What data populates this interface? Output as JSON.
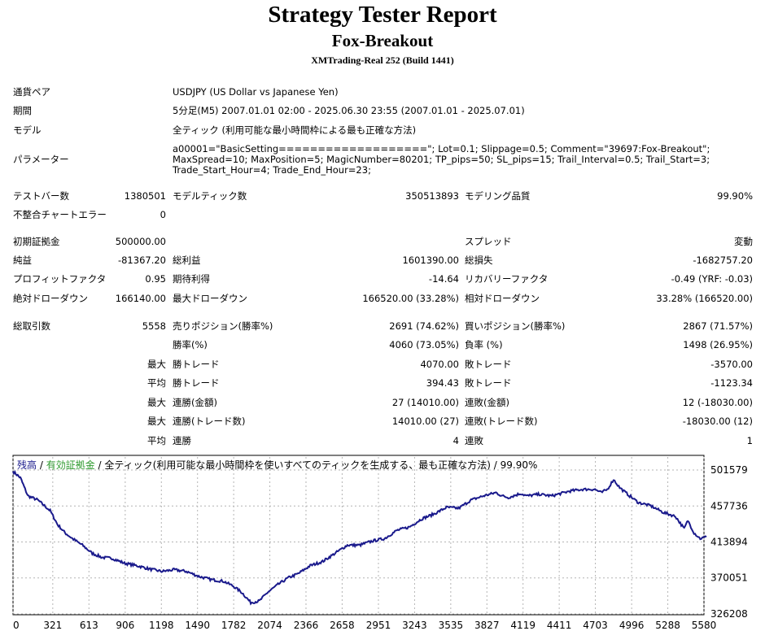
{
  "report": {
    "title": "Strategy Tester Report",
    "ea_name": "Fox-Breakout",
    "server": "XMTrading-Real 252 (Build 1441)"
  },
  "info": {
    "pair_label": "通貨ペア",
    "pair_value": "USDJPY (US Dollar vs Japanese Yen)",
    "period_label": "期間",
    "period_value": "5分足(M5) 2007.01.01 02:00 - 2025.06.30 23:55 (2007.01.01 - 2025.07.01)",
    "model_label": "モデル",
    "model_value": "全ティック (利用可能な最小時間枠による最も正確な方法)",
    "params_label": "パラメーター",
    "params_value": "a00001=\"BasicSetting===================\"; Lot=0.1; Slippage=0.5; Comment=\"39697:Fox-Breakout\"; MaxSpread=10; MaxPosition=5; MagicNumber=80201; TP_pips=50; SL_pips=15; Trail_Interval=0.5; Trail_Start=3; Trade_Start_Hour=4; Trade_End_Hour=23;"
  },
  "test": {
    "bars_label": "テストバー数",
    "bars_value": "1380501",
    "ticks_label": "モデルティック数",
    "ticks_value": "350513893",
    "quality_label": "モデリング品質",
    "quality_value": "99.90%",
    "mismatch_label": "不整合チャートエラー",
    "mismatch_value": "0"
  },
  "results": {
    "deposit_label": "初期証拠金",
    "deposit_value": "500000.00",
    "spread_label": "スプレッド",
    "spread_value": "変動",
    "net_label": "純益",
    "net_value": "-81367.20",
    "gross_profit_label": "総利益",
    "gross_profit_value": "1601390.00",
    "gross_loss_label": "総損失",
    "gross_loss_value": "-1682757.20",
    "pf_label": "プロフィットファクタ",
    "pf_value": "0.95",
    "payoff_label": "期待利得",
    "payoff_value": "-14.64",
    "recovery_label": "リカバリーファクタ",
    "recovery_value": "-0.49 (YRF: -0.03)",
    "abs_dd_label": "絶対ドローダウン",
    "abs_dd_value": "166140.00",
    "max_dd_label": "最大ドローダウン",
    "max_dd_value": "166520.00 (33.28%)",
    "rel_dd_label": "相対ドローダウン",
    "rel_dd_value": "33.28% (166520.00)"
  },
  "trades": {
    "total_label": "総取引数",
    "total_value": "5558",
    "short_label": "売りポジション(勝率%)",
    "short_value": "2691 (74.62%)",
    "long_label": "買いポジション(勝率%)",
    "long_value": "2867 (71.57%)",
    "win_label": "勝率(%)",
    "win_value": "4060 (73.05%)",
    "loss_label": "負率 (%)",
    "loss_value": "1498 (26.95%)",
    "max": "最大",
    "avg": "平均",
    "win_trade_label": "勝トレード",
    "loss_trade_label": "敗トレード",
    "max_win_trade": "4070.00",
    "max_loss_trade": "-3570.00",
    "avg_win_trade": "394.43",
    "avg_loss_trade": "-1123.34",
    "consec_win_amount_label": "連勝(金額)",
    "consec_win_amount_value": "27 (14010.00)",
    "consec_loss_amount_label": "連敗(金額)",
    "consec_loss_amount_value": "12 (-18030.00)",
    "consec_win_count_label": "連勝(トレード数)",
    "consec_win_count_value": "14010.00 (27)",
    "consec_loss_count_label": "連敗(トレード数)",
    "consec_loss_count_value": "-18030.00 (12)",
    "avg_consec_win_label": "連勝",
    "avg_consec_win_value": "4",
    "avg_consec_loss_label": "連敗",
    "avg_consec_loss_value": "1"
  },
  "chart_legend": {
    "balance": "残高",
    "sep1": " / ",
    "equity": "有効証拠金",
    "rest": " / 全ティック(利用可能な最小時間枠を使いすべてのティックを生成する、最も正確な方法) / 99.90%"
  },
  "colors": {
    "balance_line": "#1a1a8c",
    "balance_legend": "#1a1a8c",
    "equity_legend": "#2e9a2e",
    "grid": "#b4b4b4"
  },
  "chart_data": {
    "type": "line",
    "title": "",
    "xlabel": "",
    "ylabel": "",
    "x_ticks": [
      0,
      321,
      613,
      906,
      1198,
      1490,
      1782,
      2074,
      2366,
      2658,
      2951,
      3243,
      3535,
      3827,
      4119,
      4411,
      4703,
      4996,
      5288,
      5580
    ],
    "y_ticks": [
      501579,
      457736,
      413894,
      370051,
      326208
    ],
    "xlim": [
      0,
      5580
    ],
    "ylim": [
      326208,
      501579
    ],
    "series": [
      {
        "x": [
          0,
          60,
          120,
          200,
          300,
          360,
          420,
          480,
          560,
          640,
          720,
          800,
          900,
          1000,
          1100,
          1200,
          1300,
          1400,
          1500,
          1600,
          1700,
          1780,
          1850,
          1920,
          1990,
          2060,
          2140,
          2220,
          2300,
          2400,
          2500,
          2600,
          2700,
          2800,
          2900,
          3000,
          3100,
          3200,
          3300,
          3400,
          3500,
          3600,
          3700,
          3800,
          3900,
          3950,
          4000,
          4100,
          4150,
          4250,
          4350,
          4450,
          4500,
          4600,
          4700,
          4750,
          4800,
          4850,
          4900,
          4980,
          5050,
          5150,
          5250,
          5350,
          5420,
          5450,
          5500,
          5550,
          5600
        ],
        "y": [
          500000,
          492000,
          470000,
          465000,
          452000,
          435000,
          425000,
          418000,
          410000,
          400000,
          395000,
          394000,
          388000,
          385000,
          381000,
          378000,
          380000,
          378000,
          372000,
          368000,
          366000,
          360000,
          352000,
          340000,
          342000,
          353000,
          362000,
          370000,
          375000,
          385000,
          390000,
          400000,
          410000,
          410000,
          415000,
          418000,
          428000,
          432000,
          442000,
          448000,
          456000,
          455000,
          465000,
          470000,
          474000,
          470000,
          468000,
          473000,
          470000,
          472000,
          470000,
          474000,
          476000,
          478000,
          478000,
          474000,
          478000,
          490000,
          480000,
          470000,
          462000,
          458000,
          450000,
          445000,
          430000,
          440000,
          425000,
          418000,
          420000
        ]
      }
    ]
  }
}
